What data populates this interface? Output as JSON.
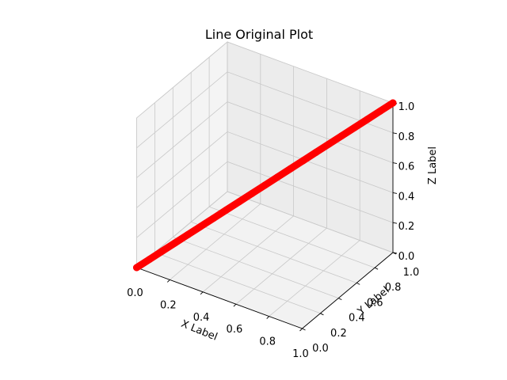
{
  "chart_data": {
    "type": "line",
    "projection": "3d",
    "title": "Line Original Plot",
    "xlabel": "X Label",
    "ylabel": "Y Label",
    "zlabel": "Z Label",
    "xlim": [
      0,
      1
    ],
    "ylim": [
      0,
      1
    ],
    "zlim": [
      0,
      1
    ],
    "xticks": [
      "0.0",
      "0.2",
      "0.4",
      "0.6",
      "0.8",
      "1.0"
    ],
    "yticks": [
      "0.0",
      "0.2",
      "0.4",
      "0.6",
      "0.8",
      "1.0"
    ],
    "zticks": [
      "0.0",
      "0.2",
      "0.4",
      "0.6",
      "0.8",
      "1.0"
    ],
    "grid": true,
    "series": [
      {
        "color": "#ff0000",
        "marker": "o",
        "x": [
          0.0,
          0.05,
          0.1,
          0.15,
          0.2,
          0.25,
          0.3,
          0.35,
          0.4,
          0.45,
          0.5,
          0.55,
          0.6,
          0.65,
          0.7,
          0.75,
          0.8,
          0.85,
          0.9,
          0.95,
          1.0
        ],
        "y": [
          0.0,
          0.05,
          0.1,
          0.15,
          0.2,
          0.25,
          0.3,
          0.35,
          0.4,
          0.45,
          0.5,
          0.55,
          0.6,
          0.65,
          0.7,
          0.75,
          0.8,
          0.85,
          0.9,
          0.95,
          1.0
        ],
        "z": [
          0.0,
          0.05,
          0.1,
          0.15,
          0.2,
          0.25,
          0.3,
          0.35,
          0.4,
          0.45,
          0.5,
          0.55,
          0.6,
          0.65,
          0.7,
          0.75,
          0.8,
          0.85,
          0.9,
          0.95,
          1.0
        ]
      }
    ]
  }
}
